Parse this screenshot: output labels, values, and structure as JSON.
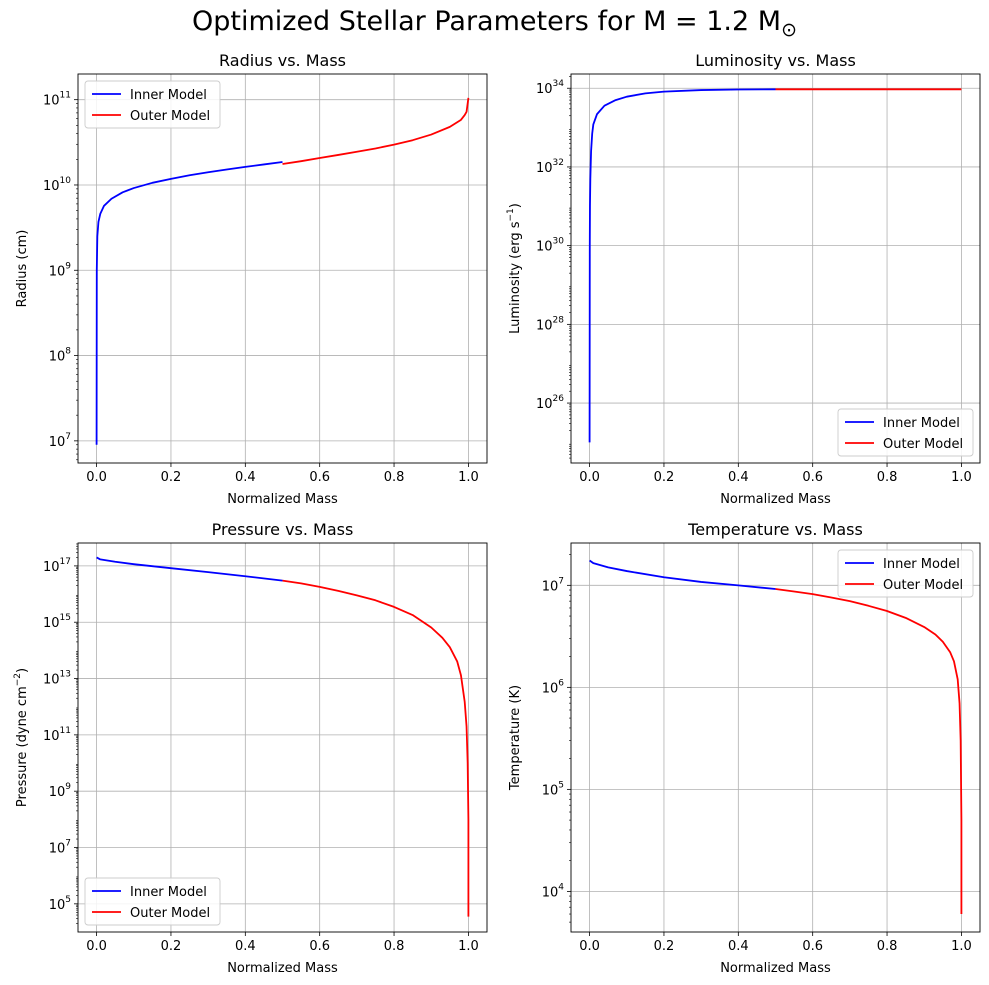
{
  "figure": {
    "title_prefix": "Optimized Stellar Parameters for M = 1.2 M",
    "title_sub": "⊙"
  },
  "colors": {
    "inner": "#0000ff",
    "outer": "#ff0000",
    "grid": "#b0b0b0"
  },
  "chart_data": [
    {
      "type": "line",
      "title": "Radius vs. Mass",
      "xlabel": "Normalized Mass",
      "ylabel": "Radius (cm)",
      "yscale": "log",
      "xlim": [
        -0.05,
        1.05
      ],
      "ylim": [
        5500000.0,
        200000000000.0
      ],
      "xticks": [
        "0.0",
        "0.2",
        "0.4",
        "0.6",
        "0.8",
        "1.0"
      ],
      "yticks": [
        {
          "base": "10",
          "exp": "7"
        },
        {
          "base": "10",
          "exp": "8"
        },
        {
          "base": "10",
          "exp": "9"
        },
        {
          "base": "10",
          "exp": "10"
        },
        {
          "base": "10",
          "exp": "11"
        }
      ],
      "grid": true,
      "legend": "top-left",
      "series": [
        {
          "name": "Inner Model",
          "x": [
            0.0,
            0.0005,
            0.002,
            0.005,
            0.01,
            0.02,
            0.04,
            0.07,
            0.1,
            0.15,
            0.2,
            0.25,
            0.3,
            0.35,
            0.4,
            0.45,
            0.5
          ],
          "y": [
            9000000.0,
            1000000000.0,
            2500000000.0,
            3700000000.0,
            4600000000.0,
            5700000000.0,
            6900000000.0,
            8200000000.0,
            9200000000.0,
            10600000000.0,
            11800000000.0,
            13000000000.0,
            14100000000.0,
            15200000000.0,
            16300000000.0,
            17400000000.0,
            18600000000.0
          ]
        },
        {
          "name": "Outer Model",
          "x": [
            0.5,
            0.55,
            0.6,
            0.65,
            0.7,
            0.75,
            0.8,
            0.85,
            0.9,
            0.95,
            0.98,
            0.99,
            0.995,
            1.0
          ],
          "y": [
            17600000000.0,
            19000000000.0,
            20700000000.0,
            22500000000.0,
            24500000000.0,
            26800000000.0,
            29700000000.0,
            33500000000.0,
            39000000000.0,
            48000000000.0,
            58000000000.0,
            66000000000.0,
            72000000000.0,
            105000000000.0
          ]
        }
      ]
    },
    {
      "type": "line",
      "title": "Luminosity vs. Mass",
      "xlabel": "Normalized Mass",
      "ylabel_main": "Luminosity (erg s",
      "ylabel_sup": "−1",
      "ylabel_end": ")",
      "yscale": "log",
      "xlim": [
        -0.05,
        1.05
      ],
      "ylim": [
        3e+24,
        2.3e+34
      ],
      "xticks": [
        "0.0",
        "0.2",
        "0.4",
        "0.6",
        "0.8",
        "1.0"
      ],
      "yticks": [
        {
          "base": "10",
          "exp": "26"
        },
        {
          "base": "10",
          "exp": "28"
        },
        {
          "base": "10",
          "exp": "30"
        },
        {
          "base": "10",
          "exp": "32"
        },
        {
          "base": "10",
          "exp": "34"
        }
      ],
      "grid": true,
      "legend": "bottom-right",
      "series": [
        {
          "name": "Inner Model",
          "x": [
            0.0,
            0.0005,
            0.001,
            0.002,
            0.004,
            0.007,
            0.01,
            0.02,
            0.04,
            0.07,
            0.1,
            0.15,
            0.2,
            0.3,
            0.4,
            0.5
          ],
          "y": [
            1e+25,
            1e+30,
            1e+31,
            5e+31,
            2.5e+32,
            7e+32,
            1.2e+33,
            2.2e+33,
            3.6e+33,
            5e+33,
            6.1e+33,
            7.4e+33,
            8.2e+33,
            9e+33,
            9.3e+33,
            9.4e+33
          ]
        },
        {
          "name": "Outer Model",
          "x": [
            0.5,
            0.6,
            0.7,
            0.8,
            0.9,
            1.0
          ],
          "y": [
            9.4e+33,
            9.4e+33,
            9.4e+33,
            9.4e+33,
            9.4e+33,
            9.4e+33
          ]
        }
      ]
    },
    {
      "type": "line",
      "title": "Pressure vs. Mass",
      "xlabel": "Normalized Mass",
      "ylabel_main": "Pressure (dyne cm",
      "ylabel_sup": "−2",
      "ylabel_end": ")",
      "yscale": "log",
      "xlim": [
        -0.05,
        1.05
      ],
      "ylim": [
        10000.0,
        6.5e+17
      ],
      "xticks": [
        "0.0",
        "0.2",
        "0.4",
        "0.6",
        "0.8",
        "1.0"
      ],
      "yticks": [
        {
          "base": "10",
          "exp": "5"
        },
        {
          "base": "10",
          "exp": "7"
        },
        {
          "base": "10",
          "exp": "9"
        },
        {
          "base": "10",
          "exp": "11"
        },
        {
          "base": "10",
          "exp": "13"
        },
        {
          "base": "10",
          "exp": "15"
        },
        {
          "base": "10",
          "exp": "17"
        }
      ],
      "grid": true,
      "legend": "bottom-left",
      "series": [
        {
          "name": "Inner Model",
          "x": [
            0.0,
            0.01,
            0.05,
            0.1,
            0.2,
            0.3,
            0.4,
            0.5
          ],
          "y": [
            2e+17,
            1.7e+17,
            1.4e+17,
            1.15e+17,
            8.3e+16,
            6e+16,
            4.3e+16,
            3e+16
          ]
        },
        {
          "name": "Outer Model",
          "x": [
            0.5,
            0.55,
            0.6,
            0.65,
            0.7,
            0.75,
            0.8,
            0.85,
            0.9,
            0.93,
            0.95,
            0.97,
            0.98,
            0.99,
            0.995,
            0.998,
            1.0,
            1.0
          ],
          "y": [
            3e+16,
            2.4e+16,
            1.8e+16,
            1.3e+16,
            9000000000000000.0,
            6000000000000000.0,
            3500000000000000.0,
            1800000000000000.0,
            650000000000000.0,
            280000000000000.0,
            130000000000000.0,
            40000000000000.0,
            13000000000000.0,
            1500000000000.0,
            200000000000.0,
            10000000000.0,
            100000000.0,
            35000.0
          ]
        }
      ]
    },
    {
      "type": "line",
      "title": "Temperature vs. Mass",
      "xlabel": "Normalized Mass",
      "ylabel": "Temperature (K)",
      "yscale": "log",
      "xlim": [
        -0.05,
        1.05
      ],
      "ylim": [
        4000.0,
        26000000.0
      ],
      "xticks": [
        "0.0",
        "0.2",
        "0.4",
        "0.6",
        "0.8",
        "1.0"
      ],
      "yticks": [
        {
          "base": "10",
          "exp": "4"
        },
        {
          "base": "10",
          "exp": "5"
        },
        {
          "base": "10",
          "exp": "6"
        },
        {
          "base": "10",
          "exp": "7"
        }
      ],
      "grid": true,
      "legend": "top-right",
      "series": [
        {
          "name": "Inner Model",
          "x": [
            0.0,
            0.01,
            0.05,
            0.1,
            0.2,
            0.3,
            0.4,
            0.5
          ],
          "y": [
            17500000.0,
            16500000.0,
            15000000.0,
            13800000.0,
            12000000.0,
            10800000.0,
            10000000.0,
            9200000.0
          ]
        },
        {
          "name": "Outer Model",
          "x": [
            0.5,
            0.55,
            0.6,
            0.65,
            0.7,
            0.75,
            0.8,
            0.85,
            0.9,
            0.93,
            0.95,
            0.97,
            0.98,
            0.99,
            0.995,
            0.998,
            1.0,
            1.0
          ],
          "y": [
            9200000.0,
            8700000.0,
            8200000.0,
            7600000.0,
            7000000.0,
            6300000.0,
            5600000.0,
            4800000.0,
            3900000.0,
            3300000.0,
            2800000.0,
            2200000.0,
            1800000.0,
            1200000.0,
            700000.0,
            300000.0,
            50000.0,
            6000.0
          ]
        }
      ]
    }
  ]
}
